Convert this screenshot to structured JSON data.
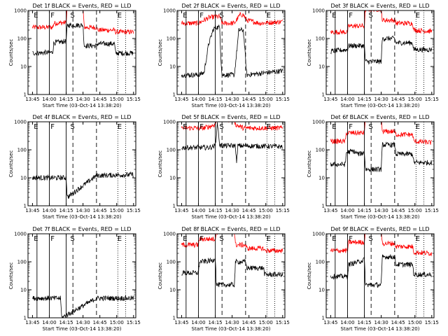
{
  "chart_data": {
    "type": "line",
    "layout": "3x3 grid",
    "background": "#ffffff",
    "colors": {
      "events": "#000000",
      "lld": "#ff0000"
    },
    "x_axis": {
      "label": "Start Time (03-Oct-14 13:38:20)",
      "ticks": [
        "13:45",
        "14:00",
        "14:15",
        "14:30",
        "14:45",
        "15:00",
        "15:15"
      ],
      "tick_minutes": [
        0,
        15,
        30,
        45,
        60,
        75,
        90
      ],
      "range_minutes": [
        -4,
        92
      ]
    },
    "y_axis": {
      "label": "Counts/sec",
      "scale": "log",
      "range": [
        1,
        1000
      ],
      "ticks": [
        "1",
        "10",
        "100",
        "1000"
      ]
    },
    "panels": [
      {
        "title": "Det 1f BLACK = Events, RED = LLD",
        "events": [
          [
            0,
            30
          ],
          [
            18,
            32
          ],
          [
            19,
            70
          ],
          [
            30,
            80
          ],
          [
            31,
            300
          ],
          [
            45,
            300
          ],
          [
            46,
            55
          ],
          [
            57,
            55
          ],
          [
            58,
            65
          ],
          [
            73,
            65
          ],
          [
            74,
            30
          ],
          [
            90,
            30
          ]
        ],
        "lld": [
          [
            0,
            250
          ],
          [
            18,
            250
          ],
          [
            19,
            350
          ],
          [
            30,
            370
          ],
          [
            31,
            1300
          ],
          [
            45,
            1300
          ],
          [
            46,
            250
          ],
          [
            57,
            250
          ],
          [
            58,
            200
          ],
          [
            73,
            200
          ],
          [
            74,
            170
          ],
          [
            90,
            170
          ]
        ],
        "lines": [
          {
            "t": 4,
            "style": "solid"
          },
          {
            "t": 15,
            "style": "solid"
          },
          {
            "t": 30,
            "style": "solid"
          },
          {
            "t": 36,
            "style": "dashed"
          },
          {
            "t": 57,
            "style": "dashed"
          },
          {
            "t": 76,
            "style": "dotted"
          },
          {
            "t": 83,
            "style": "dotted"
          }
        ],
        "marks": [
          {
            "t": 0.5,
            "label": "E"
          },
          {
            "t": 15.5,
            "label": "F"
          },
          {
            "t": 33,
            "label": "S"
          },
          {
            "t": 75,
            "label": "E"
          }
        ]
      },
      {
        "title": "Det 2f BLACK = Events, RED = LLD",
        "events": [
          [
            0,
            5
          ],
          [
            15,
            5
          ],
          [
            20,
            6
          ],
          [
            24,
            60
          ],
          [
            28,
            200
          ],
          [
            30,
            250
          ],
          [
            34,
            250
          ],
          [
            35,
            20
          ],
          [
            36,
            5
          ],
          [
            47,
            5
          ],
          [
            49,
            30
          ],
          [
            51,
            200
          ],
          [
            55,
            200
          ],
          [
            58,
            5
          ],
          [
            90,
            7
          ]
        ],
        "lld": [
          [
            0,
            350
          ],
          [
            15,
            350
          ],
          [
            24,
            550
          ],
          [
            30,
            600
          ],
          [
            34,
            600
          ],
          [
            36,
            350
          ],
          [
            47,
            350
          ],
          [
            52,
            700
          ],
          [
            55,
            700
          ],
          [
            58,
            450
          ],
          [
            70,
            350
          ],
          [
            90,
            400
          ]
        ],
        "lines": [
          {
            "t": 4,
            "style": "solid"
          },
          {
            "t": 15,
            "style": "solid"
          },
          {
            "t": 30,
            "style": "solid"
          },
          {
            "t": 36,
            "style": "dashed"
          },
          {
            "t": 57,
            "style": "dashed"
          },
          {
            "t": 76,
            "style": "dotted"
          },
          {
            "t": 83,
            "style": "dotted"
          }
        ],
        "marks": [
          {
            "t": 0.5,
            "label": "E"
          },
          {
            "t": 15.5,
            "label": "F"
          },
          {
            "t": 33,
            "label": "S"
          },
          {
            "t": 75,
            "label": "E"
          }
        ]
      },
      {
        "title": "Det 3f BLACK = Events, RED = LLD",
        "events": [
          [
            0,
            35
          ],
          [
            15,
            40
          ],
          [
            16,
            55
          ],
          [
            30,
            55
          ],
          [
            31,
            15
          ],
          [
            45,
            15
          ],
          [
            46,
            100
          ],
          [
            57,
            100
          ],
          [
            58,
            70
          ],
          [
            73,
            70
          ],
          [
            74,
            40
          ],
          [
            90,
            40
          ]
        ],
        "lld": [
          [
            0,
            170
          ],
          [
            15,
            170
          ],
          [
            16,
            280
          ],
          [
            30,
            280
          ],
          [
            31,
            1100
          ],
          [
            45,
            1100
          ],
          [
            46,
            450
          ],
          [
            57,
            450
          ],
          [
            58,
            350
          ],
          [
            73,
            350
          ],
          [
            74,
            200
          ],
          [
            90,
            180
          ]
        ],
        "lines": [
          {
            "t": 4,
            "style": "solid"
          },
          {
            "t": 15,
            "style": "solid"
          },
          {
            "t": 30,
            "style": "solid"
          },
          {
            "t": 36,
            "style": "dashed"
          },
          {
            "t": 57,
            "style": "dashed"
          },
          {
            "t": 76,
            "style": "dotted"
          },
          {
            "t": 83,
            "style": "dotted"
          }
        ],
        "marks": [
          {
            "t": 0.5,
            "label": "E"
          },
          {
            "t": 15.5,
            "label": "F"
          },
          {
            "t": 33,
            "label": "S"
          },
          {
            "t": 75,
            "label": "E"
          }
        ]
      },
      {
        "title": "Det 4f BLACK = Events, RED = LLD",
        "events": [
          [
            0,
            10
          ],
          [
            30,
            10
          ],
          [
            31,
            2
          ],
          [
            57,
            12
          ],
          [
            90,
            13
          ]
        ],
        "lld": [],
        "lines": [
          {
            "t": 4,
            "style": "solid"
          },
          {
            "t": 15,
            "style": "solid"
          },
          {
            "t": 30,
            "style": "solid"
          },
          {
            "t": 36,
            "style": "dashed"
          },
          {
            "t": 57,
            "style": "dashed"
          },
          {
            "t": 76,
            "style": "dotted"
          },
          {
            "t": 83,
            "style": "dotted"
          }
        ],
        "marks": [
          {
            "t": 0.5,
            "label": "E"
          },
          {
            "t": 15.5,
            "label": "F"
          },
          {
            "t": 33,
            "label": "S"
          },
          {
            "t": 75,
            "label": "E"
          }
        ]
      },
      {
        "title": "Det 5f BLACK = Events, RED = LLD",
        "events": [
          [
            0,
            120
          ],
          [
            25,
            120
          ],
          [
            30,
            140
          ],
          [
            32,
            900
          ],
          [
            34,
            140
          ],
          [
            48,
            140
          ],
          [
            49,
            30
          ],
          [
            50,
            140
          ],
          [
            90,
            130
          ]
        ],
        "lld": [
          [
            0,
            600
          ],
          [
            20,
            600
          ],
          [
            26,
            700
          ],
          [
            30,
            800
          ],
          [
            31,
            1200
          ],
          [
            47,
            1200
          ],
          [
            48,
            800
          ],
          [
            55,
            600
          ],
          [
            90,
            600
          ]
        ],
        "lines": [
          {
            "t": 4,
            "style": "solid"
          },
          {
            "t": 15,
            "style": "solid"
          },
          {
            "t": 30,
            "style": "solid"
          },
          {
            "t": 36,
            "style": "dashed"
          },
          {
            "t": 57,
            "style": "dashed"
          },
          {
            "t": 76,
            "style": "dotted"
          },
          {
            "t": 83,
            "style": "dotted"
          }
        ],
        "marks": [
          {
            "t": 0.5,
            "label": "E"
          },
          {
            "t": 15.5,
            "label": "F"
          },
          {
            "t": 33,
            "label": "S"
          },
          {
            "t": 75,
            "label": "E"
          }
        ]
      },
      {
        "title": "Det 6f BLACK = Events, RED = LLD",
        "events": [
          [
            0,
            30
          ],
          [
            13,
            30
          ],
          [
            14,
            80
          ],
          [
            20,
            90
          ],
          [
            25,
            70
          ],
          [
            30,
            80
          ],
          [
            31,
            20
          ],
          [
            45,
            20
          ],
          [
            46,
            150
          ],
          [
            57,
            150
          ],
          [
            58,
            70
          ],
          [
            73,
            70
          ],
          [
            74,
            35
          ],
          [
            90,
            35
          ]
        ],
        "lld": [
          [
            0,
            200
          ],
          [
            13,
            200
          ],
          [
            14,
            400
          ],
          [
            30,
            400
          ],
          [
            31,
            1200
          ],
          [
            45,
            1200
          ],
          [
            46,
            450
          ],
          [
            57,
            450
          ],
          [
            58,
            350
          ],
          [
            73,
            350
          ],
          [
            74,
            200
          ],
          [
            90,
            180
          ]
        ],
        "lines": [
          {
            "t": 4,
            "style": "solid"
          },
          {
            "t": 15,
            "style": "solid"
          },
          {
            "t": 30,
            "style": "solid"
          },
          {
            "t": 36,
            "style": "dashed"
          },
          {
            "t": 57,
            "style": "dashed"
          },
          {
            "t": 76,
            "style": "dotted"
          },
          {
            "t": 83,
            "style": "dotted"
          }
        ],
        "marks": [
          {
            "t": 0.5,
            "label": "E"
          },
          {
            "t": 15.5,
            "label": "F"
          },
          {
            "t": 33,
            "label": "S"
          },
          {
            "t": 75,
            "label": "E"
          }
        ]
      },
      {
        "title": "Det 7f BLACK = Events, RED = LLD",
        "events": [
          [
            0,
            5
          ],
          [
            25,
            5
          ],
          [
            26,
            1
          ],
          [
            57,
            5
          ],
          [
            90,
            5
          ]
        ],
        "lld": [],
        "lines": [
          {
            "t": 4,
            "style": "solid"
          },
          {
            "t": 15,
            "style": "solid"
          },
          {
            "t": 30,
            "style": "solid"
          },
          {
            "t": 36,
            "style": "dashed"
          },
          {
            "t": 57,
            "style": "dashed"
          },
          {
            "t": 76,
            "style": "dotted"
          },
          {
            "t": 83,
            "style": "dotted"
          }
        ],
        "marks": [
          {
            "t": 0.5,
            "label": "E"
          },
          {
            "t": 15.5,
            "label": "F"
          },
          {
            "t": 33,
            "label": "S"
          },
          {
            "t": 75,
            "label": "E"
          }
        ]
      },
      {
        "title": "Det 8f BLACK = Events, RED = LLD",
        "events": [
          [
            0,
            40
          ],
          [
            15,
            40
          ],
          [
            16,
            100
          ],
          [
            28,
            110
          ],
          [
            30,
            150
          ],
          [
            31,
            15
          ],
          [
            47,
            15
          ],
          [
            48,
            100
          ],
          [
            57,
            100
          ],
          [
            58,
            60
          ],
          [
            73,
            60
          ],
          [
            74,
            35
          ],
          [
            90,
            35
          ]
        ],
        "lld": [
          [
            0,
            400
          ],
          [
            15,
            400
          ],
          [
            16,
            650
          ],
          [
            30,
            650
          ],
          [
            31,
            1200
          ],
          [
            47,
            1200
          ],
          [
            48,
            400
          ],
          [
            57,
            400
          ],
          [
            58,
            300
          ],
          [
            73,
            300
          ],
          [
            74,
            250
          ],
          [
            90,
            250
          ]
        ],
        "lines": [
          {
            "t": 4,
            "style": "solid"
          },
          {
            "t": 15,
            "style": "solid"
          },
          {
            "t": 30,
            "style": "solid"
          },
          {
            "t": 36,
            "style": "dashed"
          },
          {
            "t": 57,
            "style": "dashed"
          },
          {
            "t": 76,
            "style": "dotted"
          },
          {
            "t": 83,
            "style": "dotted"
          }
        ],
        "marks": [
          {
            "t": 0.5,
            "label": "E"
          },
          {
            "t": 15.5,
            "label": "F"
          },
          {
            "t": 33,
            "label": "S"
          },
          {
            "t": 75,
            "label": "E"
          }
        ]
      },
      {
        "title": "Det 9f BLACK = Events, RED = LLD",
        "events": [
          [
            0,
            30
          ],
          [
            15,
            30
          ],
          [
            16,
            80
          ],
          [
            25,
            100
          ],
          [
            30,
            120
          ],
          [
            31,
            15
          ],
          [
            45,
            15
          ],
          [
            46,
            150
          ],
          [
            57,
            150
          ],
          [
            58,
            80
          ],
          [
            73,
            80
          ],
          [
            74,
            35
          ],
          [
            90,
            35
          ]
        ],
        "lld": [
          [
            0,
            250
          ],
          [
            15,
            250
          ],
          [
            16,
            500
          ],
          [
            30,
            500
          ],
          [
            31,
            1200
          ],
          [
            45,
            1200
          ],
          [
            46,
            450
          ],
          [
            57,
            450
          ],
          [
            58,
            350
          ],
          [
            73,
            350
          ],
          [
            74,
            220
          ],
          [
            90,
            200
          ]
        ],
        "lines": [
          {
            "t": 4,
            "style": "solid"
          },
          {
            "t": 15,
            "style": "solid"
          },
          {
            "t": 30,
            "style": "solid"
          },
          {
            "t": 36,
            "style": "dashed"
          },
          {
            "t": 57,
            "style": "dashed"
          },
          {
            "t": 76,
            "style": "dotted"
          },
          {
            "t": 83,
            "style": "dotted"
          }
        ],
        "marks": [
          {
            "t": 0.5,
            "label": "E"
          },
          {
            "t": 15.5,
            "label": "F"
          },
          {
            "t": 33,
            "label": "S"
          },
          {
            "t": 75,
            "label": "E"
          }
        ]
      }
    ]
  }
}
